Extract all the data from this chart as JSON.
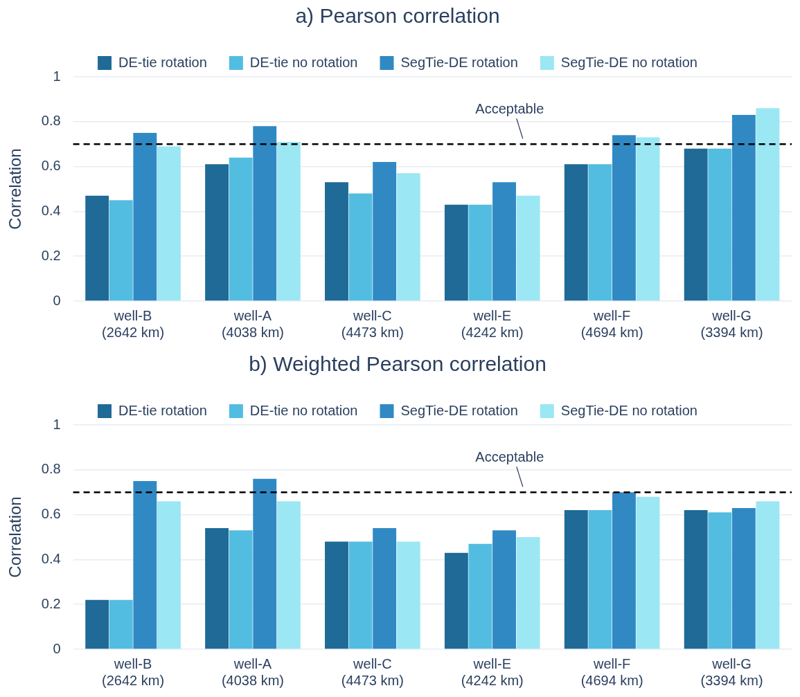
{
  "chart_data": [
    {
      "type": "bar",
      "title": "a) Pearson correlation",
      "ylabel": "Correlation",
      "categories": [
        "well-B\n(2642 km)",
        "well-A\n(4038 km)",
        "well-C\n(4473 km)",
        "well-E\n(4242 km)",
        "well-F\n(4694 km)",
        "well-G\n(3394 km)"
      ],
      "series": [
        {
          "name": "DE-tie rotation",
          "color": "#1f6a96",
          "values": [
            0.47,
            0.61,
            0.53,
            0.43,
            0.61,
            0.68
          ]
        },
        {
          "name": "DE-tie no rotation",
          "color": "#52bde0",
          "values": [
            0.45,
            0.64,
            0.48,
            0.43,
            0.61,
            0.68
          ]
        },
        {
          "name": "SegTie-DE rotation",
          "color": "#3189c4",
          "values": [
            0.75,
            0.78,
            0.62,
            0.53,
            0.74,
            0.83
          ]
        },
        {
          "name": "SegTie-DE no rotation",
          "color": "#9be7f4",
          "values": [
            0.69,
            0.71,
            0.57,
            0.47,
            0.73,
            0.86
          ]
        }
      ],
      "ylim": [
        0,
        1
      ],
      "yticks": [
        0,
        0.2,
        0.4,
        0.6,
        0.8,
        1
      ],
      "grid": "y",
      "legend": "top",
      "ref_lines": [
        {
          "axis": "y",
          "value": 0.7,
          "label": "Acceptable",
          "color": "#000000",
          "line_style": "dashed"
        }
      ]
    },
    {
      "type": "bar",
      "title": "b) Weighted Pearson correlation",
      "ylabel": "Correlation",
      "categories": [
        "well-B\n(2642 km)",
        "well-A\n(4038 km)",
        "well-C\n(4473 km)",
        "well-E\n(4242 km)",
        "well-F\n(4694 km)",
        "well-G\n(3394 km)"
      ],
      "series": [
        {
          "name": "DE-tie rotation",
          "color": "#1f6a96",
          "values": [
            0.22,
            0.54,
            0.48,
            0.43,
            0.62,
            0.62
          ]
        },
        {
          "name": "DE-tie no rotation",
          "color": "#52bde0",
          "values": [
            0.22,
            0.53,
            0.48,
            0.47,
            0.62,
            0.61
          ]
        },
        {
          "name": "SegTie-DE rotation",
          "color": "#3189c4",
          "values": [
            0.75,
            0.76,
            0.54,
            0.53,
            0.7,
            0.63
          ]
        },
        {
          "name": "SegTie-DE no rotation",
          "color": "#9be7f4",
          "values": [
            0.66,
            0.66,
            0.48,
            0.5,
            0.68,
            0.66
          ]
        }
      ],
      "ylim": [
        0,
        1
      ],
      "yticks": [
        0,
        0.2,
        0.4,
        0.6,
        0.8,
        1
      ],
      "grid": "y",
      "legend": "top",
      "ref_lines": [
        {
          "axis": "y",
          "value": 0.7,
          "label": "Acceptable",
          "color": "#000000",
          "line_style": "dashed"
        }
      ]
    }
  ]
}
